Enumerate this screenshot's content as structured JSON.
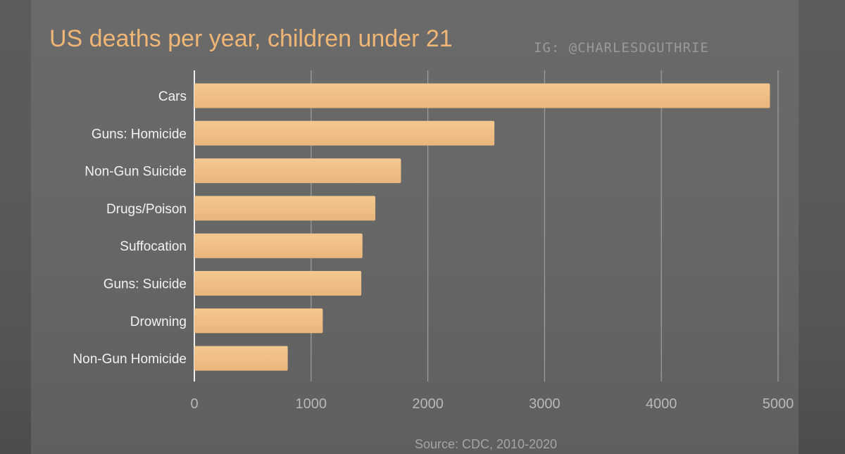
{
  "chart_data": {
    "type": "bar",
    "orientation": "horizontal",
    "title": "US deaths per year, children under 21",
    "watermark": "IG: @CHARLESDGUTHRIE",
    "source": "Source: CDC, 2010-2020",
    "categories": [
      "Cars",
      "Guns: Homicide",
      "Non-Gun Suicide",
      "Drugs/Poison",
      "Suffocation",
      "Guns: Suicide",
      "Drowning",
      "Non-Gun Homicide"
    ],
    "values": [
      4930,
      2570,
      1770,
      1550,
      1440,
      1430,
      1100,
      800
    ],
    "xlim": [
      0,
      5000
    ],
    "xticks": [
      "0",
      "1000",
      "2000",
      "3000",
      "4000",
      "5000"
    ],
    "grid": "vertical",
    "bar_color": "#f2c48a",
    "title_color": "#f0b676"
  }
}
